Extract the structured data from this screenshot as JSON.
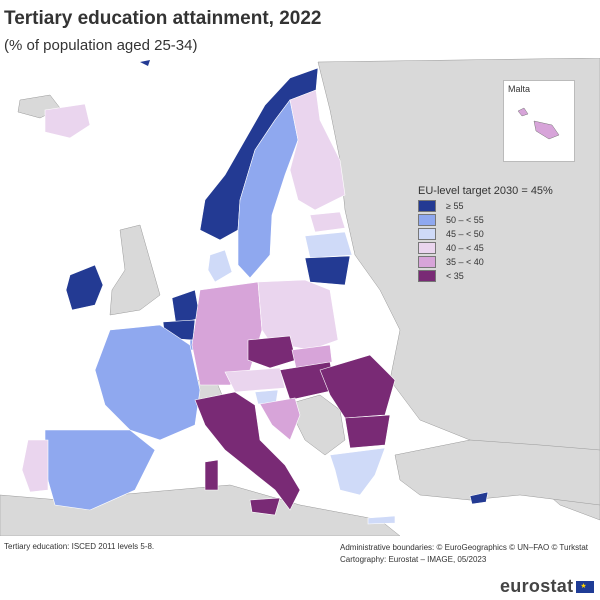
{
  "title": "Tertiary education attainment, 2022",
  "subtitle": "(% of population aged 25-34)",
  "inset": {
    "label": "Malta"
  },
  "legend": {
    "title": "EU-level target 2030 = 45%",
    "items": [
      {
        "label": "≥ 55",
        "color": "#233a93"
      },
      {
        "label": "50 – < 55",
        "color": "#8fa8ef"
      },
      {
        "label": "45 – < 50",
        "color": "#cfdaf8"
      },
      {
        "label": "40 – < 45",
        "color": "#ead5ee"
      },
      {
        "label": "35 – < 40",
        "color": "#d7a4d9"
      },
      {
        "label": "< 35",
        "color": "#792a75"
      }
    ]
  },
  "footnote_left": "Tertiary education: ISCED 2011 levels 5-8.",
  "footnote_right": {
    "line1": "Administrative boundaries: © EuroGeographics © UN–FAO © Turkstat",
    "line2": "Cartography: Eurostat – IMAGE, 05/2023"
  },
  "logo": {
    "text": "eurostat"
  }
}
